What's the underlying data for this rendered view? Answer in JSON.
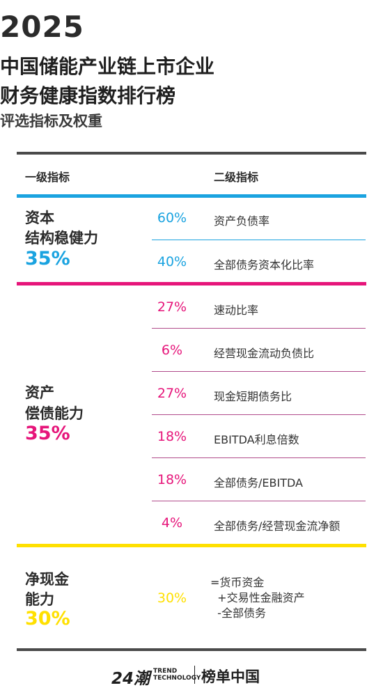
{
  "header": {
    "year": "2025",
    "title_line1": "中国储能产业链上市企业",
    "title_line2": "财务健康指数排行榜",
    "subtitle": "评选指标及权重"
  },
  "columns": {
    "level1": "一级指标",
    "level2": "二级指标"
  },
  "colors": {
    "blue": "#1aa3e0",
    "magenta": "#e6157a",
    "yellow": "#ffe000",
    "dark": "#4a4a4a"
  },
  "sections": [
    {
      "name_line1": "资本",
      "name_line2": "结构稳健力",
      "weight": "35%",
      "items": [
        {
          "pct": "60%",
          "label": "资产负债率"
        },
        {
          "pct": "40%",
          "label": "全部债务资本化比率"
        }
      ]
    },
    {
      "name_line1": "资产",
      "name_line2": "偿债能力",
      "weight": "35%",
      "items": [
        {
          "pct": "27%",
          "label": "速动比率"
        },
        {
          "pct": "6%",
          "label": "经营现金流动负债比"
        },
        {
          "pct": "27%",
          "label": "现金短期债务比"
        },
        {
          "pct": "18%",
          "label": "EBITDA利息倍数"
        },
        {
          "pct": "18%",
          "label": "全部债务/EBITDA"
        },
        {
          "pct": "4%",
          "label": "全部债务/经营现金流净额"
        }
      ]
    },
    {
      "name_line1": "净现金",
      "name_line2": "能力",
      "weight": "30%",
      "items": [
        {
          "pct": "30%",
          "formula": [
            "=货币资金",
            "  +交易性金融资产",
            "  -全部债务"
          ]
        }
      ]
    }
  ],
  "footer": {
    "logo_24": "24潮",
    "trend_line1": "TREND",
    "trend_line2": "TECHNOLOGY",
    "bangdan": "榜单中国"
  }
}
